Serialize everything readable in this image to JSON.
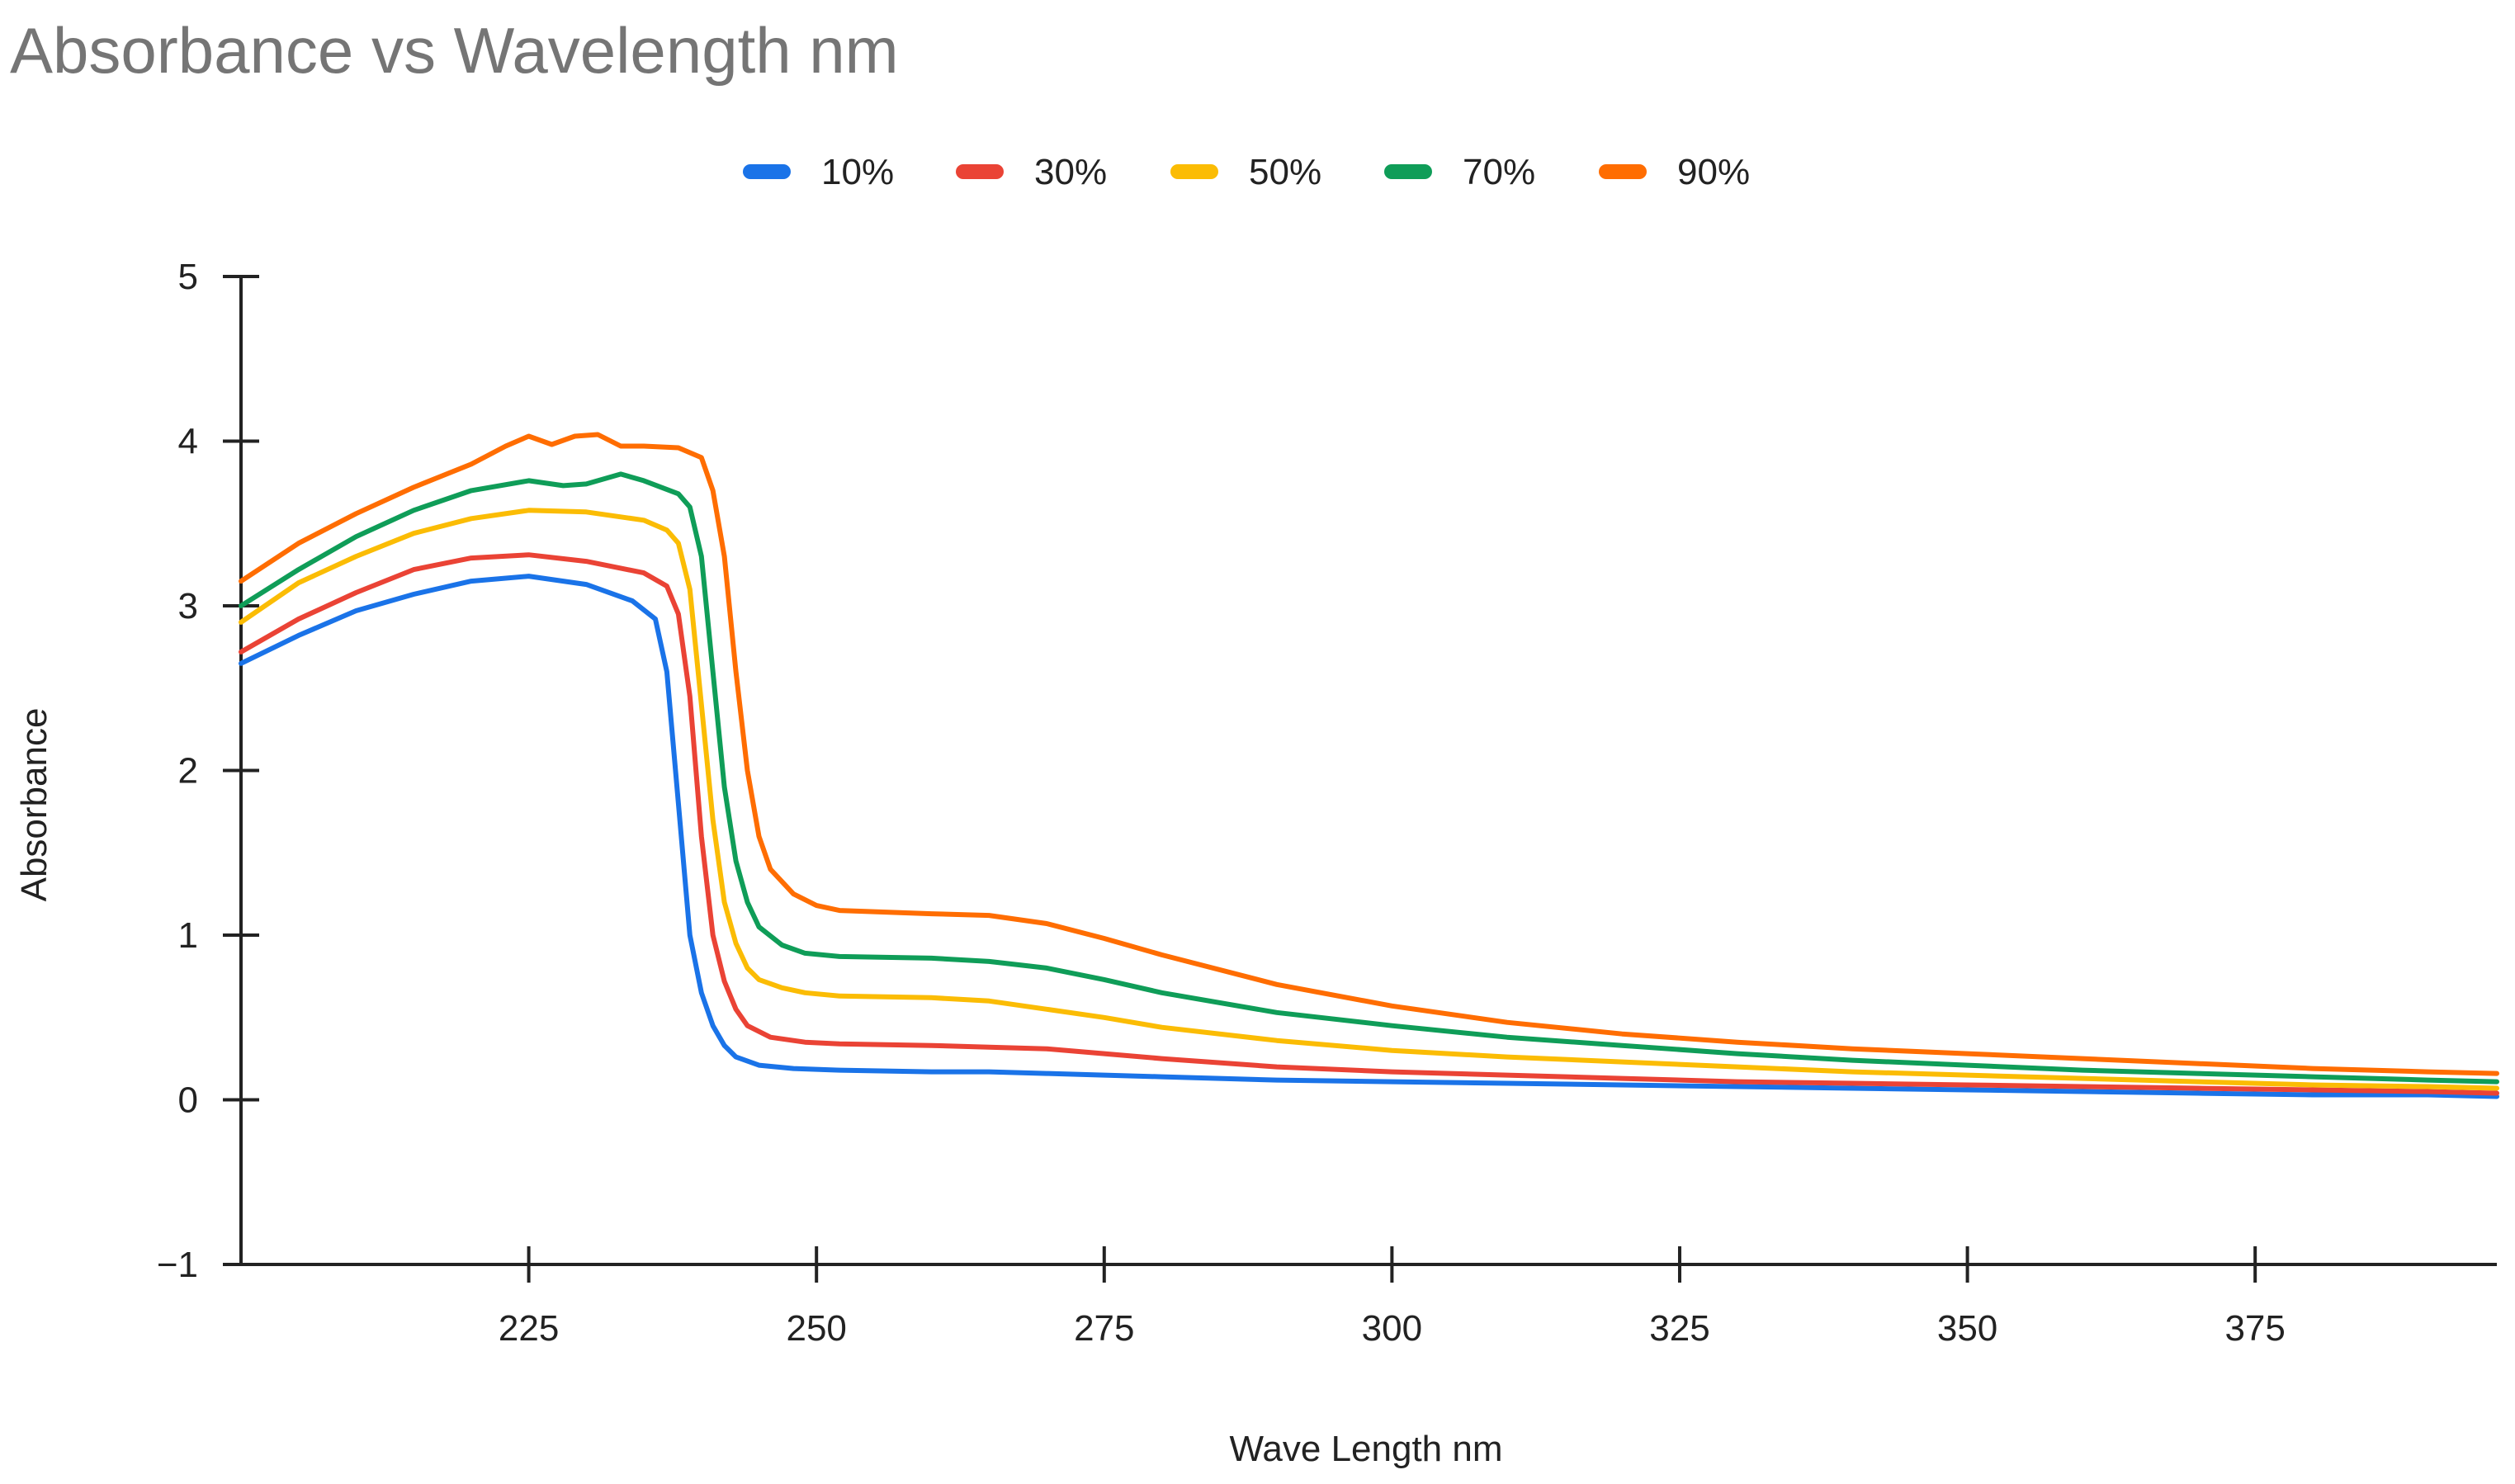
{
  "chart_data": {
    "type": "line",
    "title": "Absorbance vs Wavelength nm",
    "xlabel": "Wave Length nm",
    "ylabel": "Absorbance",
    "xlim": [
      200,
      396
    ],
    "ylim": [
      -1,
      5
    ],
    "xticks": [
      225,
      250,
      275,
      300,
      325,
      350,
      375
    ],
    "xtick_labels": [
      "225",
      "250",
      "275",
      "300",
      "325",
      "350",
      "375"
    ],
    "yticks": [
      -1,
      0,
      1,
      2,
      3,
      4,
      5
    ],
    "ytick_labels": [
      "−1",
      "0",
      "1",
      "2",
      "3",
      "4",
      "5"
    ],
    "grid": false,
    "legend_position": "top",
    "series": [
      {
        "name": "10%",
        "color": "#1a73e8",
        "x": [
          200,
          205,
          210,
          215,
          220,
          225,
          230,
          234,
          236,
          237,
          238,
          239,
          240,
          241,
          242,
          243,
          245,
          248,
          252,
          260,
          265,
          270,
          275,
          280,
          285,
          290,
          300,
          310,
          320,
          330,
          340,
          350,
          360,
          370,
          380,
          390,
          396
        ],
        "y": [
          2.65,
          2.82,
          2.97,
          3.07,
          3.15,
          3.18,
          3.13,
          3.03,
          2.92,
          2.6,
          1.8,
          1.0,
          0.65,
          0.45,
          0.33,
          0.26,
          0.21,
          0.19,
          0.18,
          0.17,
          0.17,
          0.16,
          0.15,
          0.14,
          0.13,
          0.12,
          0.11,
          0.1,
          0.09,
          0.08,
          0.07,
          0.06,
          0.05,
          0.04,
          0.03,
          0.03,
          0.02
        ]
      },
      {
        "name": "30%",
        "color": "#ea4335",
        "x": [
          200,
          205,
          210,
          215,
          220,
          225,
          230,
          235,
          237,
          238,
          239,
          240,
          241,
          242,
          243,
          244,
          246,
          249,
          252,
          260,
          265,
          270,
          275,
          280,
          290,
          300,
          310,
          320,
          330,
          340,
          350,
          360,
          370,
          380,
          390,
          396
        ],
        "y": [
          2.72,
          2.92,
          3.08,
          3.22,
          3.29,
          3.31,
          3.27,
          3.2,
          3.12,
          2.95,
          2.45,
          1.6,
          1.0,
          0.72,
          0.55,
          0.45,
          0.38,
          0.35,
          0.34,
          0.33,
          0.32,
          0.31,
          0.28,
          0.25,
          0.2,
          0.17,
          0.15,
          0.13,
          0.11,
          0.1,
          0.09,
          0.08,
          0.07,
          0.06,
          0.05,
          0.04
        ]
      },
      {
        "name": "50%",
        "color": "#fbbc04",
        "x": [
          200,
          205,
          210,
          215,
          220,
          225,
          230,
          235,
          237,
          238,
          239,
          240,
          241,
          242,
          243,
          244,
          245,
          247,
          249,
          252,
          260,
          265,
          270,
          275,
          280,
          290,
          300,
          310,
          320,
          330,
          340,
          350,
          360,
          370,
          380,
          390,
          396
        ],
        "y": [
          2.9,
          3.14,
          3.3,
          3.44,
          3.53,
          3.58,
          3.57,
          3.52,
          3.46,
          3.38,
          3.1,
          2.4,
          1.7,
          1.2,
          0.95,
          0.8,
          0.73,
          0.68,
          0.65,
          0.63,
          0.62,
          0.6,
          0.55,
          0.5,
          0.44,
          0.36,
          0.3,
          0.26,
          0.23,
          0.2,
          0.17,
          0.15,
          0.13,
          0.11,
          0.09,
          0.08,
          0.07
        ]
      },
      {
        "name": "70%",
        "color": "#0f9d58",
        "x": [
          200,
          205,
          210,
          215,
          220,
          225,
          228,
          230,
          233,
          235,
          238,
          239,
          240,
          241,
          242,
          243,
          244,
          245,
          247,
          249,
          252,
          260,
          265,
          270,
          275,
          280,
          290,
          300,
          310,
          320,
          330,
          340,
          350,
          360,
          370,
          380,
          390,
          396
        ],
        "y": [
          3.0,
          3.22,
          3.42,
          3.58,
          3.7,
          3.76,
          3.73,
          3.74,
          3.8,
          3.76,
          3.68,
          3.6,
          3.3,
          2.6,
          1.9,
          1.45,
          1.2,
          1.05,
          0.94,
          0.89,
          0.87,
          0.86,
          0.84,
          0.8,
          0.73,
          0.65,
          0.53,
          0.45,
          0.38,
          0.33,
          0.28,
          0.24,
          0.21,
          0.18,
          0.16,
          0.14,
          0.12,
          0.11
        ]
      },
      {
        "name": "90%",
        "color": "#ff6d01",
        "x": [
          200,
          205,
          210,
          215,
          220,
          223,
          225,
          227,
          229,
          231,
          233,
          235,
          238,
          240,
          241,
          242,
          243,
          244,
          245,
          246,
          248,
          250,
          252,
          260,
          265,
          270,
          275,
          280,
          290,
          300,
          310,
          320,
          330,
          340,
          350,
          360,
          370,
          380,
          390,
          396
        ],
        "y": [
          3.15,
          3.38,
          3.56,
          3.72,
          3.86,
          3.97,
          4.03,
          3.98,
          4.03,
          4.04,
          3.97,
          3.97,
          3.96,
          3.9,
          3.7,
          3.3,
          2.6,
          2.0,
          1.6,
          1.4,
          1.25,
          1.18,
          1.15,
          1.13,
          1.12,
          1.07,
          0.98,
          0.88,
          0.7,
          0.57,
          0.47,
          0.4,
          0.35,
          0.31,
          0.28,
          0.25,
          0.22,
          0.19,
          0.17,
          0.16
        ]
      }
    ]
  }
}
